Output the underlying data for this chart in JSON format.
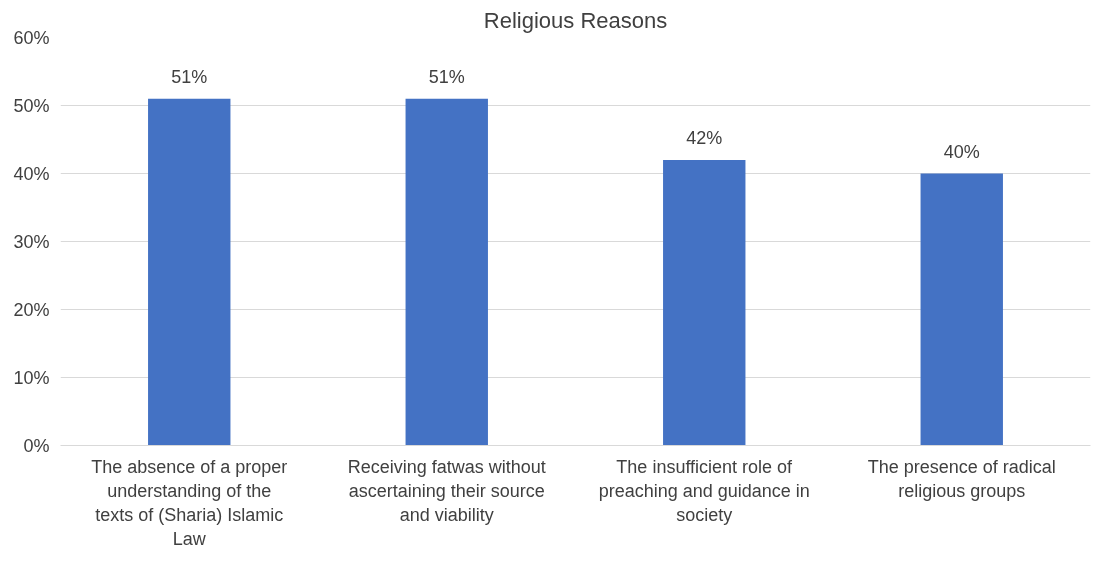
{
  "chart_data": {
    "type": "bar",
    "title": "Religious Reasons",
    "categories": [
      "The absence of a proper understanding of the texts of (Sharia) Islamic Law",
      "Receiving fatwas without ascertaining their source and viability",
      "The insufficient role of preaching and guidance in society",
      "The presence of radical religious groups"
    ],
    "values": [
      51,
      51,
      42,
      40
    ],
    "value_labels": [
      "51%",
      "51%",
      "42%",
      "40%"
    ],
    "color": "#4472c4",
    "ylim": [
      0,
      60
    ],
    "yticks": [
      {
        "value": 0,
        "label": "0%"
      },
      {
        "value": 10,
        "label": "10%"
      },
      {
        "value": 20,
        "label": "20%"
      },
      {
        "value": 30,
        "label": "30%"
      },
      {
        "value": 40,
        "label": "40%"
      },
      {
        "value": 50,
        "label": "50%"
      },
      {
        "value": 60,
        "label": "60%"
      }
    ],
    "grid": "y"
  }
}
